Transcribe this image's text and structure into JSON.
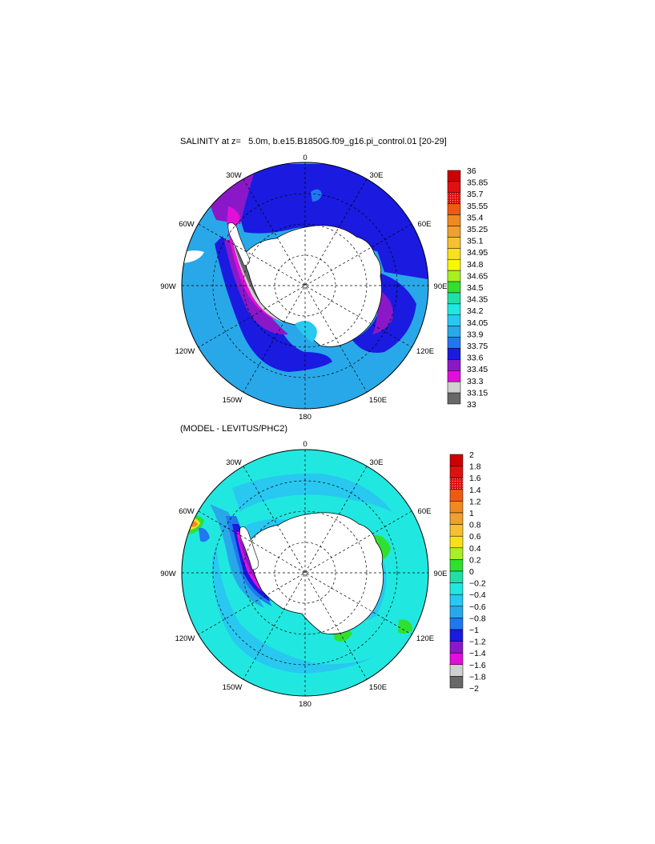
{
  "panels": [
    {
      "title": "SALINITY at z=   5.0m, b.e15.B1850G.f09_g16.pi_control.01 [20-29]",
      "lon_labels": {
        "top": "0",
        "tr": "30E",
        "r1": "60E",
        "r": "90E",
        "r2": "120E",
        "br": "150E",
        "bottom": "180",
        "bl": "150W",
        "l2": "120W",
        "l": "90W",
        "l1": "60W",
        "tl": "30W"
      },
      "colorbar_labels": [
        "36",
        "35.85",
        "35.7",
        "35.55",
        "35.4",
        "35.25",
        "35.1",
        "34.95",
        "34.8",
        "34.65",
        "34.5",
        "34.35",
        "34.2",
        "34.05",
        "33.9",
        "33.75",
        "33.6",
        "33.45",
        "33.3",
        "33.15",
        "33"
      ],
      "colorbar_colors": [
        "#cc0000",
        "#e01010",
        "#f03020",
        "#f05a10",
        "#f08a20",
        "#f0a030",
        "#f8c030",
        "#f8e020",
        "#f8f800",
        "#a8f020",
        "#30e030",
        "#20e0a8",
        "#20e8e0",
        "#28c8f0",
        "#28a8e8",
        "#1f78f0",
        "#1a1ae0",
        "#8a18c8",
        "#e010d8",
        "#d0d0d0",
        "#686868"
      ]
    },
    {
      "title": "(MODEL - LEVITUS/PHC2)",
      "lon_labels": {
        "top": "0",
        "tr": "30E",
        "r1": "60E",
        "r": "90E",
        "r2": "120E",
        "br": "150E",
        "bottom": "180",
        "bl": "150W",
        "l2": "120W",
        "l": "90W",
        "l1": "60W",
        "tl": "30W"
      },
      "colorbar_labels": [
        "2",
        "1.8",
        "1.6",
        "1.4",
        "1.2",
        "1",
        "0.8",
        "0.6",
        "0.4",
        "0.2",
        "0",
        "−0.2",
        "−0.4",
        "−0.6",
        "−0.8",
        "−1",
        "−1.2",
        "−1.4",
        "−1.6",
        "−1.8",
        "−2"
      ],
      "colorbar_colors": [
        "#cc0000",
        "#e01010",
        "#f03020",
        "#f05a10",
        "#f08a20",
        "#f0a030",
        "#f8c030",
        "#f8e020",
        "#a8f020",
        "#30e030",
        "#20e0a8",
        "#20e8e0",
        "#28c8f0",
        "#28a8e8",
        "#1f78f0",
        "#1a1ae0",
        "#8a18c8",
        "#e010d8",
        "#d0d0d0",
        "#686868"
      ]
    }
  ],
  "colors": {
    "land": "#ffffff",
    "ocean_base_top": "#28a8e8",
    "ocean_base_bottom": "#20e8e0"
  }
}
